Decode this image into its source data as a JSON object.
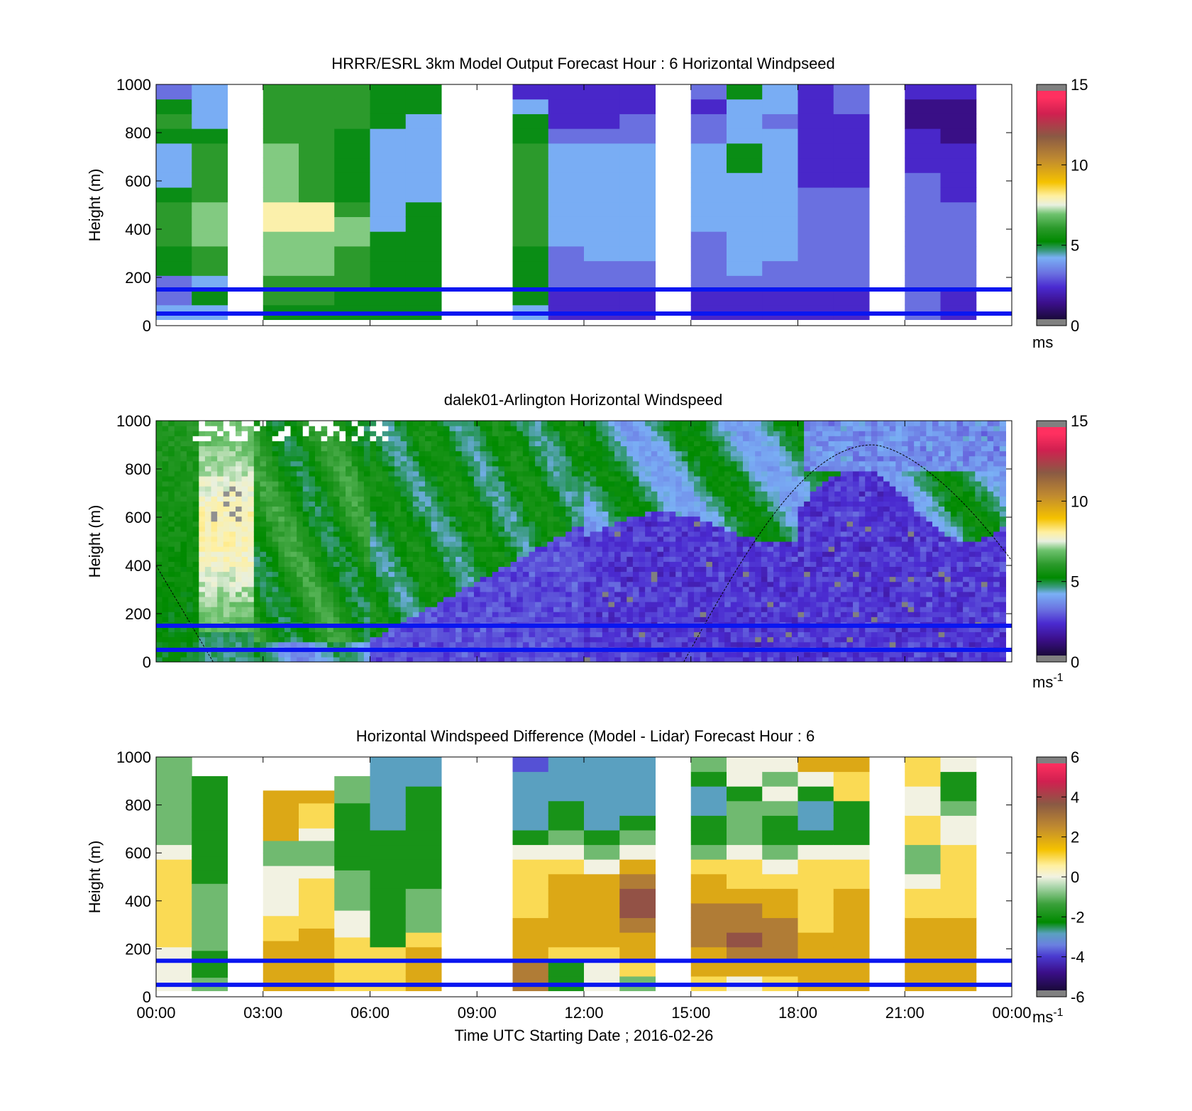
{
  "figure": {
    "xlabel": "Time UTC  Starting Date ; 2016-02-26",
    "xticks": [
      "00:00",
      "03:00",
      "06:00",
      "09:00",
      "12:00",
      "15:00",
      "18:00",
      "21:00",
      "00:00"
    ],
    "ylabel": "Height (m)",
    "yticks": [
      "0",
      "200",
      "400",
      "600",
      "800",
      "1000"
    ]
  },
  "chart_data": [
    {
      "id": "model",
      "type": "heatmap",
      "title": "HRRR/ESRL 3km Model Output   Forecast Hour : 6 Horizontal Windpseed",
      "xlabel": "",
      "ylabel": "Height (m)",
      "xlim": [
        0,
        24
      ],
      "ylim": [
        0,
        1000
      ],
      "colorbar": {
        "min": 0,
        "max": 15,
        "ticks": [
          "0",
          "5",
          "10",
          "15"
        ],
        "unit": "ms",
        "unit_sup": "",
        "palette": "wind"
      },
      "horizontal_lines_m": [
        50,
        150
      ],
      "columns_hours": [
        0,
        1,
        3,
        4,
        5,
        6,
        7,
        10,
        11,
        12,
        13,
        15,
        16,
        17,
        18,
        19,
        21,
        22
      ],
      "missing_hours": [
        2,
        8,
        9,
        14,
        20,
        23
      ],
      "column_top_m": 1000,
      "column_bottom_m": 25,
      "profiles_speed_ms": [
        [
          4,
          3,
          3,
          5,
          5,
          6,
          6,
          6,
          5,
          4,
          4,
          4,
          5,
          6,
          5,
          3
        ],
        [
          4,
          5,
          4,
          6,
          6,
          7,
          7,
          7,
          6,
          6,
          6,
          6,
          5,
          4,
          4,
          4
        ],
        [
          5,
          6,
          6,
          7,
          7,
          7,
          8,
          8,
          7,
          7,
          7,
          7,
          6,
          6,
          6,
          6
        ],
        [
          5,
          6,
          6,
          7,
          7,
          7,
          8,
          8,
          6,
          6,
          6,
          6,
          6,
          6,
          6,
          6
        ],
        [
          5,
          5,
          6,
          6,
          6,
          7,
          7,
          6,
          5,
          5,
          5,
          5,
          5,
          6,
          6,
          6
        ],
        [
          5,
          5,
          5,
          5,
          5,
          5,
          4,
          4,
          4,
          4,
          4,
          4,
          4,
          5,
          5,
          5
        ],
        [
          5,
          5,
          5,
          5,
          5,
          5,
          5,
          5,
          4,
          4,
          4,
          4,
          4,
          4,
          5,
          5
        ],
        [
          4,
          5,
          5,
          5,
          5,
          6,
          6,
          6,
          6,
          6,
          6,
          6,
          5,
          5,
          4,
          2
        ],
        [
          2,
          2,
          3,
          3,
          3,
          4,
          4,
          4,
          4,
          4,
          4,
          4,
          3,
          2,
          2,
          2
        ],
        [
          2,
          2,
          3,
          3,
          4,
          4,
          4,
          4,
          4,
          4,
          4,
          4,
          3,
          2,
          2,
          2
        ],
        [
          2,
          2,
          3,
          3,
          4,
          4,
          4,
          4,
          4,
          4,
          4,
          4,
          3,
          3,
          2,
          2
        ],
        [
          2,
          2,
          3,
          3,
          3,
          3,
          4,
          4,
          4,
          4,
          4,
          4,
          3,
          3,
          2,
          3
        ],
        [
          2,
          2,
          3,
          4,
          4,
          4,
          4,
          4,
          4,
          4,
          5,
          5,
          4,
          4,
          4,
          5
        ],
        [
          2,
          2,
          3,
          3,
          4,
          4,
          4,
          4,
          4,
          4,
          4,
          4,
          4,
          3,
          4,
          4
        ],
        [
          2,
          2,
          3,
          3,
          3,
          3,
          3,
          3,
          3,
          2,
          2,
          2,
          2,
          2,
          2,
          2
        ],
        [
          2,
          2,
          3,
          3,
          3,
          3,
          3,
          3,
          3,
          2,
          2,
          2,
          2,
          2,
          3,
          3
        ],
        [
          3,
          3,
          3,
          3,
          3,
          3,
          3,
          3,
          3,
          3,
          2,
          2,
          2,
          1,
          1,
          2
        ],
        [
          2,
          2,
          3,
          3,
          3,
          3,
          3,
          3,
          2,
          2,
          2,
          2,
          1,
          1,
          1,
          2
        ]
      ]
    },
    {
      "id": "lidar",
      "type": "heatmap",
      "title": "dalek01-Arlington  Horizontal Windspeed",
      "xlabel": "",
      "ylabel": "Height (m)",
      "xlim": [
        0,
        24
      ],
      "ylim": [
        0,
        1000
      ],
      "colorbar": {
        "min": 0,
        "max": 15,
        "ticks": [
          "0",
          "5",
          "10",
          "15"
        ],
        "unit": "ms",
        "unit_sup": "-1",
        "palette": "wind"
      },
      "horizontal_lines_m": [
        50,
        150
      ],
      "nodata_after_hour": 23.8,
      "regimes": [
        {
          "from_hour": 0,
          "to_hour": 6,
          "description_values_ms": [
            5,
            6,
            7
          ]
        },
        {
          "from_hour": 6,
          "to_hour": 12,
          "boundary_top_m": 500
        },
        {
          "from_hour": 12,
          "to_hour": 24,
          "boundary_top_m": 600
        }
      ],
      "reference_curve": {
        "start_hour": 0,
        "start_m": 400,
        "end_hour": 1.6,
        "end_m": 0,
        "second_start_hour": 14.8,
        "peak_hour": 20.1,
        "peak_m": 900,
        "end2_hour": 24,
        "end2_m": 420
      }
    },
    {
      "id": "difference",
      "type": "heatmap",
      "title": "Horizontal Windspeed Difference (Model - Lidar) Forecast Hour : 6",
      "xlabel": "Time UTC  Starting Date ; 2016-02-26",
      "ylabel": "Height (m)",
      "xlim": [
        0,
        24
      ],
      "ylim": [
        0,
        1000
      ],
      "colorbar": {
        "min": -6,
        "max": 6,
        "ticks": [
          "-6",
          "-4",
          "-2",
          "0",
          "2",
          "4",
          "6"
        ],
        "unit": "ms",
        "unit_sup": "-1",
        "palette": "diff"
      },
      "horizontal_lines_m": [
        50,
        150
      ],
      "columns_hours": [
        0,
        1,
        3,
        4,
        5,
        6,
        7,
        10,
        11,
        12,
        13,
        15,
        16,
        17,
        18,
        19,
        21,
        22
      ],
      "column_tops_m": [
        1000,
        920,
        1000,
        1000,
        1000,
        1000,
        1000,
        1000,
        1000,
        1000,
        1000,
        1000,
        1000,
        1000,
        1000,
        1000,
        1000,
        1000
      ],
      "column_data_tops_m": [
        1000,
        920,
        860,
        860,
        920,
        1000,
        1000,
        1000,
        1000,
        1000,
        1000,
        1000,
        1000,
        1000,
        1000,
        1000,
        1000,
        1000
      ],
      "column_bottom_m": 25,
      "profiles_diff_ms": [
        [
          0,
          0,
          0,
          1,
          1,
          1,
          1,
          1,
          1,
          0,
          -1,
          -1,
          -1,
          -1,
          -1,
          -1
        ],
        [
          -1,
          -2,
          -2,
          -1,
          -1,
          -1,
          -1,
          -1,
          -2,
          -2,
          -2,
          -2,
          -2,
          -2,
          -2,
          -2
        ],
        [
          2,
          2,
          2,
          2,
          1,
          1,
          0,
          0,
          0,
          0,
          -1,
          -1,
          2,
          2,
          2,
          2
        ],
        [
          2,
          2,
          2,
          2,
          2,
          1,
          1,
          1,
          1,
          0,
          -1,
          -1,
          0,
          1,
          1,
          2
        ],
        [
          1,
          1,
          1,
          1,
          0,
          0,
          -1,
          -1,
          -1,
          -2,
          -2,
          -2,
          -2,
          -2,
          -1,
          -1
        ],
        [
          1,
          1,
          1,
          -2,
          -2,
          -2,
          -2,
          -2,
          -2,
          -2,
          -2,
          -3,
          -3,
          -3,
          -3,
          -3
        ],
        [
          2,
          2,
          2,
          1,
          -1,
          -1,
          -1,
          -2,
          -2,
          -2,
          -2,
          -2,
          -2,
          -2,
          -3,
          -3
        ],
        [
          3,
          3,
          2,
          2,
          2,
          1,
          1,
          1,
          1,
          0,
          -2,
          -3,
          -3,
          -3,
          -3,
          -4
        ],
        [
          -2,
          -2,
          1,
          2,
          2,
          2,
          2,
          2,
          1,
          0,
          -1,
          -2,
          -2,
          -3,
          -3,
          -3
        ],
        [
          0,
          0,
          1,
          2,
          2,
          2,
          2,
          2,
          0,
          -1,
          -2,
          -3,
          -3,
          -3,
          -3,
          -3
        ],
        [
          -1,
          1,
          2,
          2,
          3,
          4,
          4,
          3,
          2,
          0,
          -1,
          -2,
          -3,
          -3,
          -3,
          -3
        ],
        [
          1,
          2,
          2,
          3,
          3,
          3,
          2,
          2,
          1,
          -1,
          -2,
          -2,
          -3,
          -3,
          -2,
          -1
        ],
        [
          0,
          2,
          3,
          4,
          3,
          3,
          2,
          1,
          1,
          0,
          -1,
          -1,
          -1,
          -2,
          0,
          0
        ],
        [
          1,
          2,
          3,
          3,
          3,
          2,
          2,
          1,
          0,
          -1,
          -2,
          -2,
          -1,
          0,
          -1,
          0
        ],
        [
          2,
          2,
          2,
          2,
          1,
          1,
          1,
          1,
          1,
          0,
          -2,
          -3,
          -3,
          -2,
          0,
          2
        ],
        [
          2,
          2,
          2,
          2,
          2,
          2,
          2,
          1,
          1,
          0,
          -2,
          -2,
          -2,
          1,
          1,
          2
        ],
        [
          2,
          2,
          2,
          2,
          2,
          1,
          1,
          0,
          -1,
          -1,
          1,
          1,
          0,
          0,
          1,
          1
        ],
        [
          2,
          2,
          2,
          2,
          2,
          1,
          1,
          1,
          1,
          1,
          0,
          0,
          -1,
          -2,
          -2,
          0
        ]
      ]
    }
  ]
}
